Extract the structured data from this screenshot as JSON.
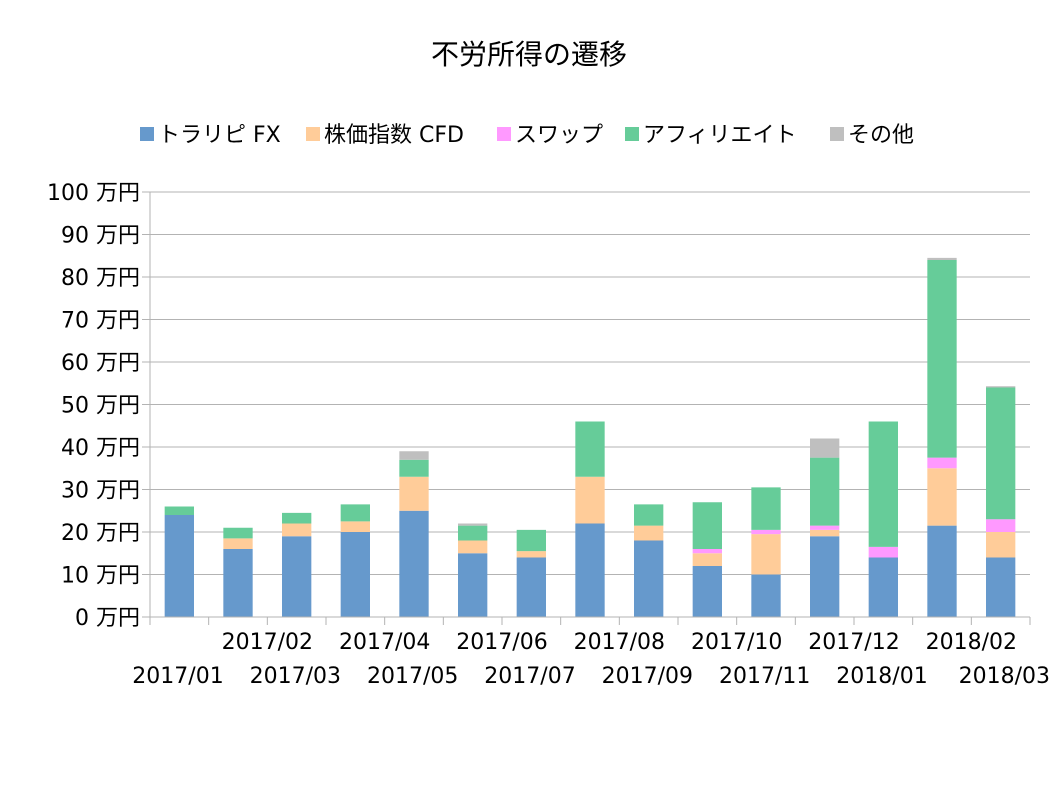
{
  "chart_data": {
    "type": "bar",
    "stacked": true,
    "title": "不労所得の遷移",
    "xlabel": "",
    "ylabel": "",
    "ylim": [
      0,
      100
    ],
    "yticks": [
      0,
      10,
      20,
      30,
      40,
      50,
      60,
      70,
      80,
      90,
      100
    ],
    "ytick_suffix": " 万円",
    "grid": true,
    "legend_position": "top",
    "categories": [
      "2017/01",
      "2017/02",
      "2017/03",
      "2017/04",
      "2017/05",
      "2017/06",
      "2017/07",
      "2017/08",
      "2017/09",
      "2017/10",
      "2017/11",
      "2017/12",
      "2018/01",
      "2018/02",
      "2018/03"
    ],
    "series": [
      {
        "name": "トラリピ FX",
        "color": "#6699cc",
        "values": [
          24,
          16,
          19,
          20,
          25,
          15,
          14,
          22,
          18,
          12,
          10,
          19,
          14,
          21.5,
          14
        ]
      },
      {
        "name": "株価指数 CFD",
        "color": "#ffcc99",
        "values": [
          0,
          2.5,
          3,
          2.5,
          8,
          3,
          1.5,
          11,
          3.5,
          3,
          9.5,
          1.5,
          0,
          13.5,
          6
        ]
      },
      {
        "name": "スワップ",
        "color": "#ff99ff",
        "values": [
          0,
          0,
          0,
          0,
          0,
          0,
          0,
          0,
          0,
          1,
          1,
          1,
          2.5,
          2.5,
          3
        ]
      },
      {
        "name": "アフィリエイト",
        "color": "#66cc99",
        "values": [
          2,
          2.5,
          2.5,
          4,
          4,
          3.5,
          5,
          13,
          5,
          11,
          10,
          16,
          29.5,
          46.5,
          31
        ]
      },
      {
        "name": "その他",
        "color": "#bfbfbf",
        "values": [
          0,
          0,
          0,
          0,
          2,
          0.5,
          0,
          0,
          0,
          0,
          0,
          4.5,
          0,
          0.5,
          0.3
        ]
      }
    ]
  }
}
